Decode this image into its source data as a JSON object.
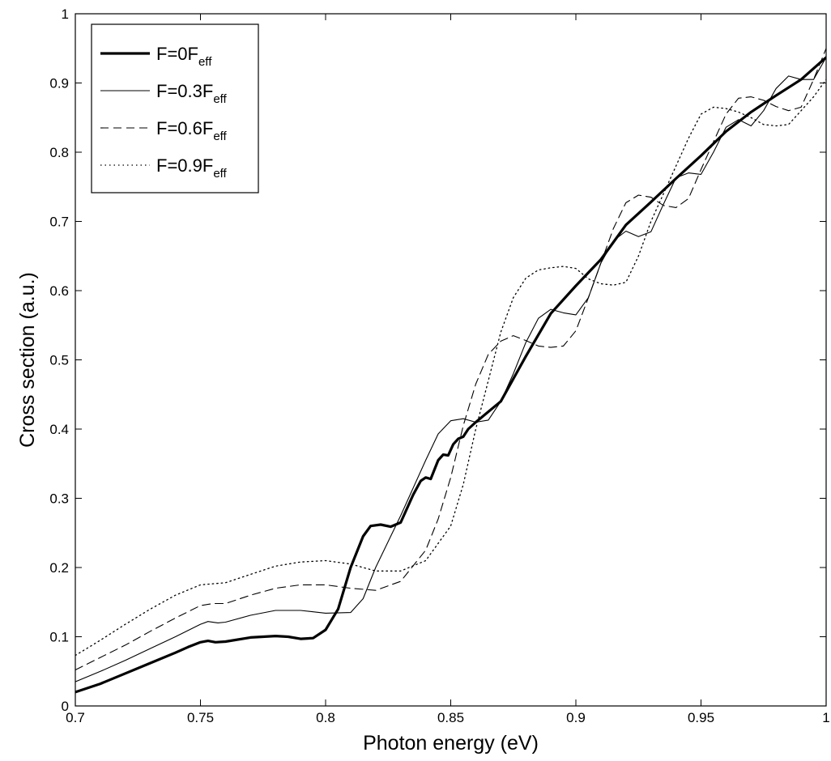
{
  "chart_data": {
    "type": "line",
    "title": "",
    "xlabel": "Photon energy (eV)",
    "ylabel": "Cross section (a.u.)",
    "xlim": [
      0.7,
      1.0
    ],
    "ylim": [
      0,
      1
    ],
    "x_ticks": [
      0.7,
      0.75,
      0.8,
      0.85,
      0.9,
      0.95,
      1.0
    ],
    "x_tick_labels": [
      "0.7",
      "0.75",
      "0.8",
      "0.85",
      "0.9",
      "0.95",
      "1"
    ],
    "y_ticks": [
      0,
      0.1,
      0.2,
      0.3,
      0.4,
      0.5,
      0.6,
      0.7,
      0.8,
      0.9,
      1.0
    ],
    "y_tick_labels": [
      "0",
      "0.1",
      "0.2",
      "0.3",
      "0.4",
      "0.5",
      "0.6",
      "0.7",
      "0.8",
      "0.9",
      "1"
    ],
    "grid": false,
    "legend_position": "top-left",
    "series": [
      {
        "name": "F=0F",
        "name_sub": "eff",
        "style": "solid-thick",
        "points": [
          [
            0.7,
            0.02
          ],
          [
            0.71,
            0.032
          ],
          [
            0.72,
            0.047
          ],
          [
            0.73,
            0.062
          ],
          [
            0.74,
            0.077
          ],
          [
            0.745,
            0.085
          ],
          [
            0.75,
            0.092
          ],
          [
            0.753,
            0.094
          ],
          [
            0.756,
            0.092
          ],
          [
            0.76,
            0.093
          ],
          [
            0.77,
            0.099
          ],
          [
            0.78,
            0.101
          ],
          [
            0.785,
            0.1
          ],
          [
            0.79,
            0.097
          ],
          [
            0.795,
            0.098
          ],
          [
            0.8,
            0.11
          ],
          [
            0.805,
            0.14
          ],
          [
            0.81,
            0.2
          ],
          [
            0.815,
            0.245
          ],
          [
            0.818,
            0.26
          ],
          [
            0.822,
            0.262
          ],
          [
            0.826,
            0.259
          ],
          [
            0.83,
            0.265
          ],
          [
            0.835,
            0.305
          ],
          [
            0.838,
            0.325
          ],
          [
            0.84,
            0.33
          ],
          [
            0.842,
            0.328
          ],
          [
            0.845,
            0.355
          ],
          [
            0.847,
            0.363
          ],
          [
            0.849,
            0.362
          ],
          [
            0.851,
            0.378
          ],
          [
            0.853,
            0.386
          ],
          [
            0.855,
            0.389
          ],
          [
            0.857,
            0.4
          ],
          [
            0.86,
            0.41
          ],
          [
            0.87,
            0.44
          ],
          [
            0.88,
            0.505
          ],
          [
            0.89,
            0.567
          ],
          [
            0.9,
            0.607
          ],
          [
            0.91,
            0.645
          ],
          [
            0.92,
            0.695
          ],
          [
            0.93,
            0.728
          ],
          [
            0.94,
            0.762
          ],
          [
            0.95,
            0.795
          ],
          [
            0.96,
            0.83
          ],
          [
            0.97,
            0.858
          ],
          [
            0.98,
            0.882
          ],
          [
            0.99,
            0.905
          ],
          [
            1.0,
            0.937
          ]
        ]
      },
      {
        "name": "F=0.3F",
        "name_sub": "eff",
        "style": "solid-thin",
        "points": [
          [
            0.7,
            0.035
          ],
          [
            0.71,
            0.05
          ],
          [
            0.72,
            0.066
          ],
          [
            0.73,
            0.083
          ],
          [
            0.74,
            0.1
          ],
          [
            0.75,
            0.118
          ],
          [
            0.753,
            0.122
          ],
          [
            0.757,
            0.12
          ],
          [
            0.76,
            0.121
          ],
          [
            0.77,
            0.131
          ],
          [
            0.78,
            0.138
          ],
          [
            0.79,
            0.138
          ],
          [
            0.8,
            0.134
          ],
          [
            0.81,
            0.135
          ],
          [
            0.815,
            0.155
          ],
          [
            0.82,
            0.2
          ],
          [
            0.83,
            0.275
          ],
          [
            0.84,
            0.355
          ],
          [
            0.845,
            0.393
          ],
          [
            0.85,
            0.412
          ],
          [
            0.855,
            0.415
          ],
          [
            0.86,
            0.41
          ],
          [
            0.865,
            0.413
          ],
          [
            0.87,
            0.44
          ],
          [
            0.875,
            0.48
          ],
          [
            0.88,
            0.525
          ],
          [
            0.885,
            0.56
          ],
          [
            0.89,
            0.573
          ],
          [
            0.895,
            0.568
          ],
          [
            0.9,
            0.565
          ],
          [
            0.905,
            0.59
          ],
          [
            0.91,
            0.64
          ],
          [
            0.915,
            0.672
          ],
          [
            0.92,
            0.686
          ],
          [
            0.925,
            0.678
          ],
          [
            0.93,
            0.685
          ],
          [
            0.935,
            0.725
          ],
          [
            0.94,
            0.763
          ],
          [
            0.945,
            0.77
          ],
          [
            0.95,
            0.768
          ],
          [
            0.955,
            0.8
          ],
          [
            0.96,
            0.836
          ],
          [
            0.965,
            0.847
          ],
          [
            0.97,
            0.838
          ],
          [
            0.975,
            0.86
          ],
          [
            0.98,
            0.892
          ],
          [
            0.985,
            0.91
          ],
          [
            0.99,
            0.905
          ],
          [
            0.995,
            0.905
          ],
          [
            1.0,
            0.937
          ]
        ]
      },
      {
        "name": "F=0.6F",
        "name_sub": "eff",
        "style": "dashed",
        "points": [
          [
            0.7,
            0.052
          ],
          [
            0.71,
            0.07
          ],
          [
            0.72,
            0.088
          ],
          [
            0.73,
            0.108
          ],
          [
            0.74,
            0.127
          ],
          [
            0.75,
            0.145
          ],
          [
            0.755,
            0.148
          ],
          [
            0.76,
            0.148
          ],
          [
            0.77,
            0.16
          ],
          [
            0.78,
            0.17
          ],
          [
            0.79,
            0.175
          ],
          [
            0.8,
            0.175
          ],
          [
            0.81,
            0.17
          ],
          [
            0.82,
            0.167
          ],
          [
            0.83,
            0.18
          ],
          [
            0.84,
            0.225
          ],
          [
            0.845,
            0.27
          ],
          [
            0.85,
            0.33
          ],
          [
            0.855,
            0.405
          ],
          [
            0.86,
            0.465
          ],
          [
            0.865,
            0.508
          ],
          [
            0.87,
            0.527
          ],
          [
            0.875,
            0.535
          ],
          [
            0.88,
            0.528
          ],
          [
            0.885,
            0.52
          ],
          [
            0.89,
            0.518
          ],
          [
            0.895,
            0.52
          ],
          [
            0.9,
            0.542
          ],
          [
            0.905,
            0.59
          ],
          [
            0.91,
            0.64
          ],
          [
            0.915,
            0.69
          ],
          [
            0.92,
            0.727
          ],
          [
            0.925,
            0.738
          ],
          [
            0.93,
            0.735
          ],
          [
            0.935,
            0.723
          ],
          [
            0.94,
            0.72
          ],
          [
            0.945,
            0.733
          ],
          [
            0.95,
            0.775
          ],
          [
            0.955,
            0.815
          ],
          [
            0.96,
            0.855
          ],
          [
            0.965,
            0.878
          ],
          [
            0.97,
            0.88
          ],
          [
            0.975,
            0.875
          ],
          [
            0.98,
            0.866
          ],
          [
            0.985,
            0.86
          ],
          [
            0.99,
            0.865
          ],
          [
            0.995,
            0.905
          ],
          [
            1.0,
            0.95
          ]
        ]
      },
      {
        "name": "F=0.9F",
        "name_sub": "eff",
        "style": "dotted",
        "points": [
          [
            0.7,
            0.073
          ],
          [
            0.71,
            0.095
          ],
          [
            0.72,
            0.118
          ],
          [
            0.73,
            0.14
          ],
          [
            0.74,
            0.16
          ],
          [
            0.75,
            0.175
          ],
          [
            0.76,
            0.178
          ],
          [
            0.77,
            0.19
          ],
          [
            0.78,
            0.202
          ],
          [
            0.79,
            0.208
          ],
          [
            0.8,
            0.21
          ],
          [
            0.81,
            0.205
          ],
          [
            0.82,
            0.195
          ],
          [
            0.83,
            0.195
          ],
          [
            0.84,
            0.21
          ],
          [
            0.85,
            0.26
          ],
          [
            0.855,
            0.32
          ],
          [
            0.86,
            0.4
          ],
          [
            0.865,
            0.47
          ],
          [
            0.87,
            0.54
          ],
          [
            0.875,
            0.59
          ],
          [
            0.88,
            0.618
          ],
          [
            0.885,
            0.63
          ],
          [
            0.89,
            0.633
          ],
          [
            0.895,
            0.635
          ],
          [
            0.9,
            0.632
          ],
          [
            0.905,
            0.617
          ],
          [
            0.91,
            0.61
          ],
          [
            0.915,
            0.608
          ],
          [
            0.92,
            0.612
          ],
          [
            0.925,
            0.65
          ],
          [
            0.93,
            0.7
          ],
          [
            0.935,
            0.74
          ],
          [
            0.94,
            0.78
          ],
          [
            0.945,
            0.82
          ],
          [
            0.95,
            0.855
          ],
          [
            0.955,
            0.865
          ],
          [
            0.96,
            0.863
          ],
          [
            0.965,
            0.858
          ],
          [
            0.97,
            0.85
          ],
          [
            0.975,
            0.84
          ],
          [
            0.98,
            0.838
          ],
          [
            0.985,
            0.84
          ],
          [
            0.99,
            0.86
          ],
          [
            0.995,
            0.88
          ],
          [
            1.0,
            0.905
          ]
        ]
      }
    ]
  }
}
